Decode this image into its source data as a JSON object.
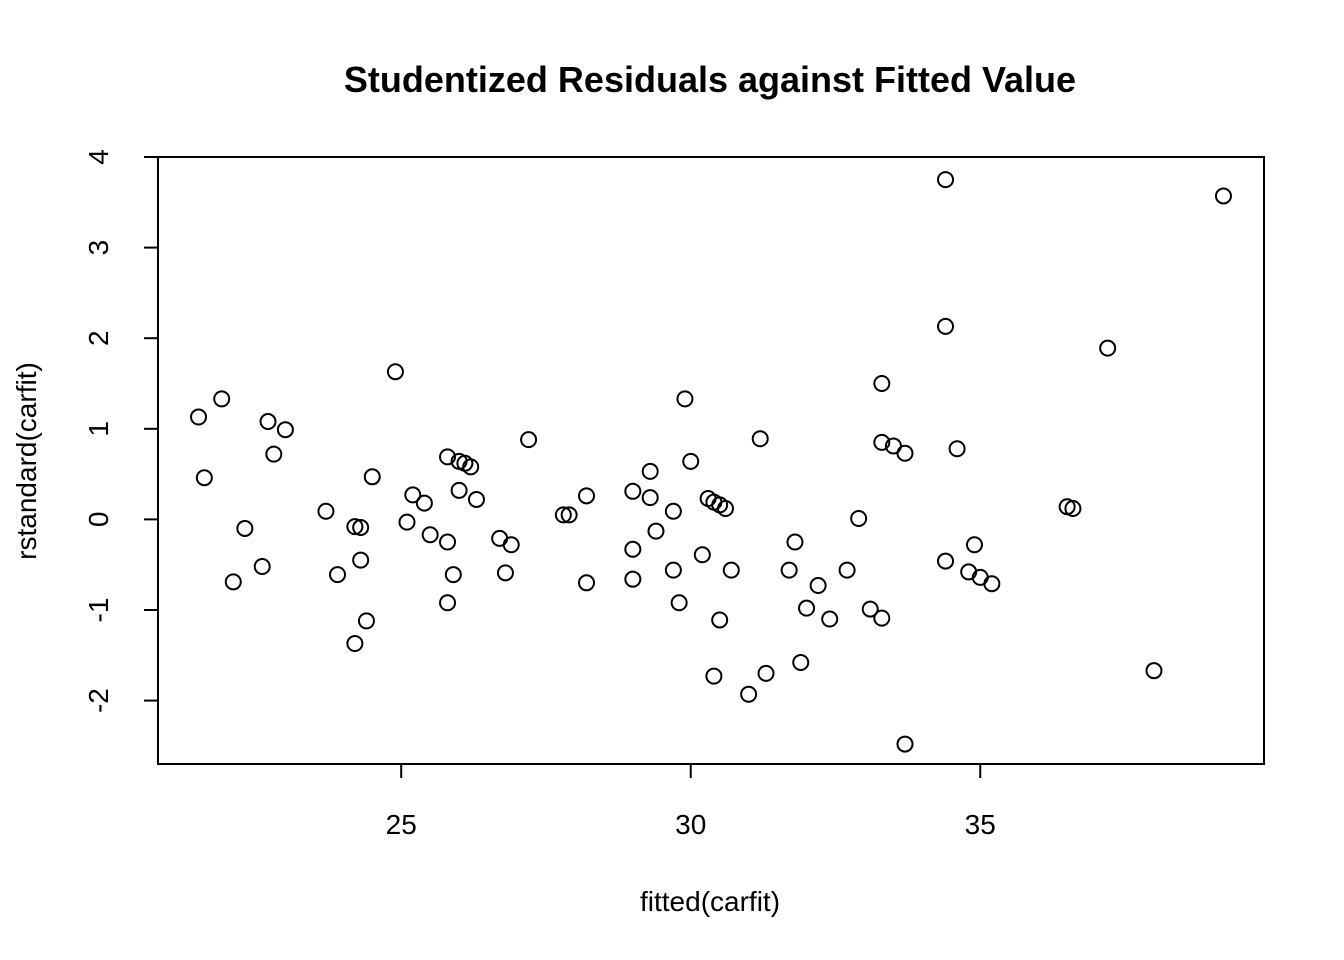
{
  "chart_data": {
    "type": "scatter",
    "title": "Studentized Residuals against Fitted Value",
    "xlabel": "fitted(carfit)",
    "ylabel": "rstandard(carfit)",
    "xlim": [
      20.8,
      39.9
    ],
    "ylim": [
      -2.7,
      4.0
    ],
    "xticks": [
      25,
      30,
      35
    ],
    "yticks": [
      -2,
      -1,
      0,
      1,
      2,
      3,
      4
    ],
    "grid": false,
    "points": [
      [
        21.5,
        1.13
      ],
      [
        21.6,
        0.46
      ],
      [
        21.9,
        1.33
      ],
      [
        22.1,
        -0.69
      ],
      [
        22.3,
        -0.1
      ],
      [
        22.6,
        -0.52
      ],
      [
        22.7,
        1.08
      ],
      [
        22.8,
        0.72
      ],
      [
        23.0,
        0.99
      ],
      [
        23.7,
        0.09
      ],
      [
        23.9,
        -0.61
      ],
      [
        24.2,
        -1.37
      ],
      [
        24.2,
        -0.08
      ],
      [
        24.3,
        -0.09
      ],
      [
        24.3,
        -0.45
      ],
      [
        24.4,
        -1.12
      ],
      [
        24.5,
        0.47
      ],
      [
        24.9,
        1.63
      ],
      [
        25.1,
        -0.03
      ],
      [
        25.2,
        0.27
      ],
      [
        25.4,
        0.18
      ],
      [
        25.5,
        -0.17
      ],
      [
        25.8,
        -0.25
      ],
      [
        25.8,
        0.69
      ],
      [
        25.9,
        -0.61
      ],
      [
        25.8,
        -0.92
      ],
      [
        26.0,
        0.32
      ],
      [
        26.0,
        0.64
      ],
      [
        26.1,
        0.62
      ],
      [
        26.2,
        0.58
      ],
      [
        26.3,
        0.22
      ],
      [
        26.7,
        -0.21
      ],
      [
        26.8,
        -0.59
      ],
      [
        26.9,
        -0.28
      ],
      [
        27.2,
        0.88
      ],
      [
        27.8,
        0.05
      ],
      [
        27.9,
        0.05
      ],
      [
        28.2,
        0.26
      ],
      [
        28.2,
        -0.7
      ],
      [
        29.0,
        0.31
      ],
      [
        29.0,
        -0.33
      ],
      [
        29.0,
        -0.66
      ],
      [
        29.3,
        0.24
      ],
      [
        29.3,
        0.53
      ],
      [
        29.4,
        -0.13
      ],
      [
        29.7,
        0.09
      ],
      [
        29.7,
        -0.56
      ],
      [
        29.9,
        1.33
      ],
      [
        29.8,
        -0.92
      ],
      [
        30.0,
        0.64
      ],
      [
        30.2,
        -0.39
      ],
      [
        30.3,
        0.23
      ],
      [
        30.4,
        0.19
      ],
      [
        30.5,
        0.16
      ],
      [
        30.6,
        0.12
      ],
      [
        30.4,
        -1.73
      ],
      [
        30.5,
        -1.11
      ],
      [
        30.7,
        -0.56
      ],
      [
        31.0,
        -1.93
      ],
      [
        31.2,
        0.89
      ],
      [
        31.3,
        -1.7
      ],
      [
        31.7,
        -0.56
      ],
      [
        31.8,
        -0.25
      ],
      [
        31.9,
        -1.58
      ],
      [
        32.0,
        -0.98
      ],
      [
        32.2,
        -0.73
      ],
      [
        32.4,
        -1.1
      ],
      [
        32.7,
        -0.56
      ],
      [
        32.9,
        0.01
      ],
      [
        33.1,
        -0.99
      ],
      [
        33.3,
        1.5
      ],
      [
        33.3,
        -1.09
      ],
      [
        33.3,
        0.85
      ],
      [
        33.5,
        0.81
      ],
      [
        33.7,
        -2.48
      ],
      [
        33.7,
        0.73
      ],
      [
        34.4,
        3.75
      ],
      [
        34.4,
        2.13
      ],
      [
        34.4,
        -0.46
      ],
      [
        34.6,
        0.78
      ],
      [
        34.8,
        -0.58
      ],
      [
        34.9,
        -0.28
      ],
      [
        35.0,
        -0.64
      ],
      [
        35.2,
        -0.71
      ],
      [
        36.5,
        0.14
      ],
      [
        36.6,
        0.12
      ],
      [
        37.2,
        1.89
      ],
      [
        38.0,
        -1.67
      ],
      [
        39.2,
        3.57
      ]
    ]
  }
}
